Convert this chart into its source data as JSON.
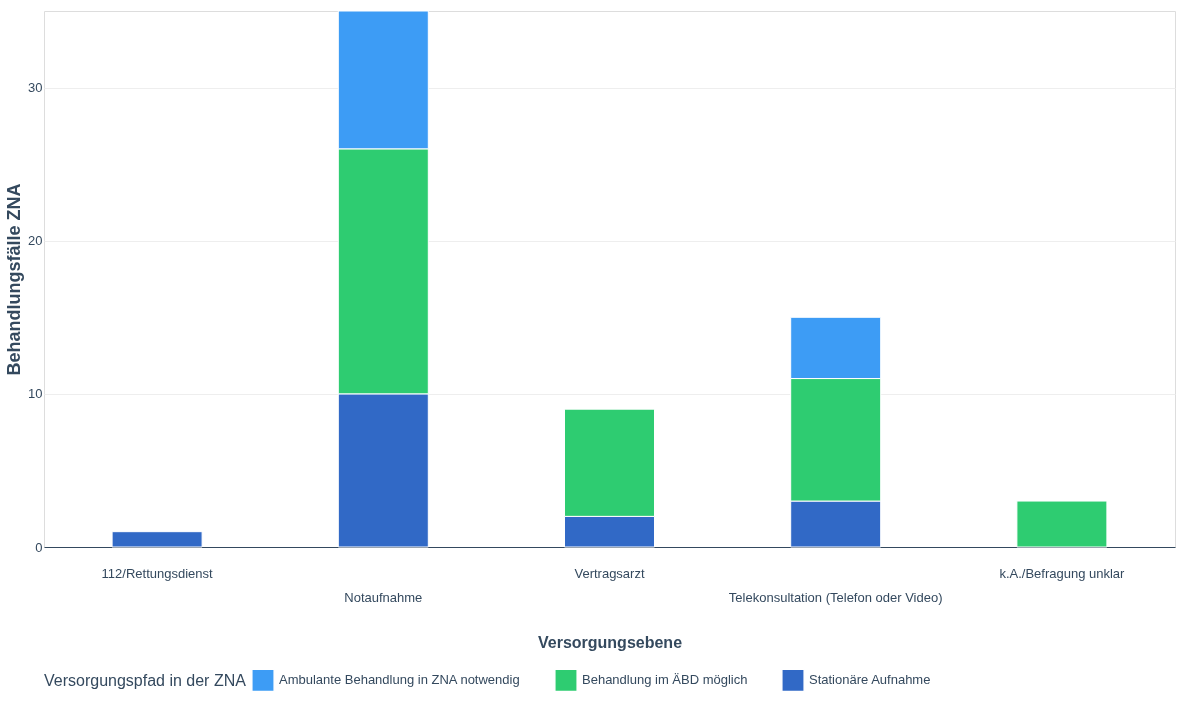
{
  "chart_data": {
    "type": "bar",
    "stacked": true,
    "xlabel": "Versorgungsebene",
    "ylabel": "Behandlungsfälle ZNA",
    "legend_title": "Versorgungspfad in der ZNA",
    "categories": [
      "112/Rettungsdienst",
      "Notaufnahme",
      "Vertragsarzt",
      "Telekonsultation (Telefon oder Video)",
      "k.A./Befragung unklar"
    ],
    "series": [
      {
        "name": "Stationäre Aufnahme",
        "color": "#3169c6",
        "values": [
          1,
          10,
          2,
          3,
          null
        ]
      },
      {
        "name": "Behandlung im ÄBD möglich",
        "color": "#2ecc71",
        "values": [
          null,
          16,
          7,
          8,
          3
        ]
      },
      {
        "name": "Ambulante Behandlung in ZNA notwendig",
        "color": "#3d9cf5",
        "values": [
          null,
          9,
          null,
          4,
          null
        ]
      }
    ],
    "ylim": [
      0,
      35
    ],
    "yticks": [
      0,
      10,
      20,
      30
    ],
    "grid": "y",
    "legend": "bottom"
  }
}
